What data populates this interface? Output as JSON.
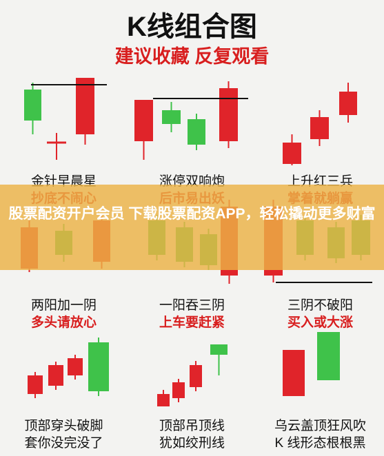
{
  "header": {
    "title": "K线组合图",
    "subtitle": "建议收藏 反复观看"
  },
  "panels": [
    {
      "name": "金针早晨星",
      "note": "抄底不闹心"
    },
    {
      "name": "涨停双响炮",
      "note": "后市易出妖"
    },
    {
      "name": "上升红三兵",
      "note": "掌着就躺赢"
    },
    {
      "name": "两阳加一阴",
      "note": "多头请放心"
    },
    {
      "name": "一阳吞三阴",
      "note": "上车要赶紧"
    },
    {
      "name": "三阴不破阳",
      "note": "买入或大涨"
    },
    {
      "name": "顶部穿头破脚",
      "note": "套你没完没了"
    },
    {
      "name": "顶部吊顶线",
      "note": "犹如绞刑线"
    },
    {
      "name": "乌云盖顶狂风吹",
      "note": "K 线形态根根黑"
    }
  ],
  "banner": {
    "text": "股票配资开户会员 下载股票配资APP，轻松撬动更多财富"
  }
}
